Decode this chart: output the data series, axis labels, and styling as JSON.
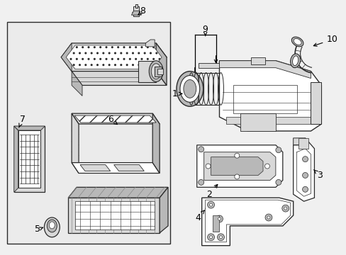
{
  "bg_color": "#f0f0f0",
  "box_bg": "#ebebeb",
  "line_color": "#2a2a2a",
  "label_color": "#000000",
  "white": "#ffffff",
  "gray_light": "#d8d8d8",
  "gray_mid": "#b8b8b8",
  "gray_dark": "#888888"
}
